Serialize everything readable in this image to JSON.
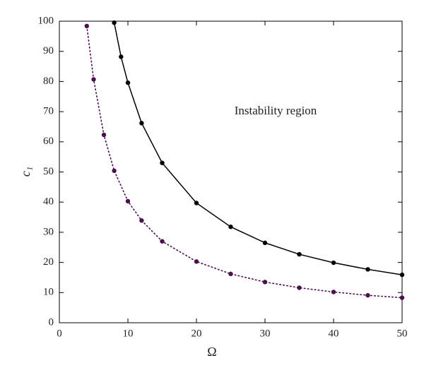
{
  "chart_data": {
    "type": "line",
    "xlabel": "Ω",
    "ylabel": "c₁",
    "annotations": [
      "Instability region"
    ],
    "series": [
      {
        "color": "#000000",
        "linestyle": "solid",
        "x": [
          8,
          9,
          10,
          12,
          15,
          20,
          25,
          30,
          35,
          40,
          45,
          50
        ],
        "values": [
          99.5,
          88.2,
          79.6,
          66.2,
          53,
          39.7,
          31.8,
          26.5,
          22.7,
          19.9,
          17.7,
          15.9
        ]
      },
      {
        "color": "#4b0f4b",
        "linestyle": "dotted",
        "x": [
          4,
          5,
          6.5,
          8,
          10,
          12,
          15,
          20,
          25,
          30,
          35,
          40,
          45,
          50
        ],
        "values": [
          98.4,
          80.7,
          62.3,
          50.4,
          40.3,
          33.9,
          27,
          20.3,
          16.2,
          13.5,
          11.6,
          10.2,
          9.1,
          8.3
        ]
      }
    ],
    "xlim": [
      0,
      50
    ],
    "xticks": [
      0,
      10,
      20,
      30,
      40,
      50
    ],
    "ylim": [
      0,
      100
    ],
    "yticks": [
      0,
      10,
      20,
      30,
      40,
      50,
      60,
      70,
      80,
      90,
      100
    ],
    "grid": false
  }
}
